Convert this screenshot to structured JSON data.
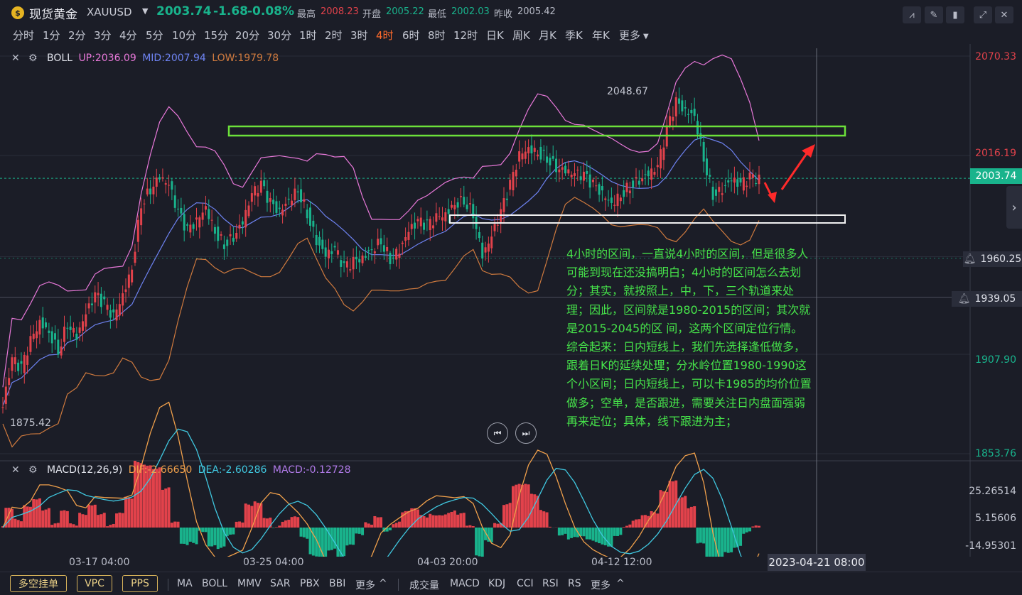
{
  "header": {
    "logo_glyph": "$",
    "symbol_name": "现货黄金",
    "symbol_code": "XAUUSD",
    "last_price": "2003.74",
    "change": "-1.68",
    "change_pct": "-0.08%",
    "high_label": "最高",
    "high_value": "2008.23",
    "open_label": "开盘",
    "open_value": "2005.22",
    "low_label": "最低",
    "low_value": "2002.03",
    "prev_label": "昨收",
    "prev_value": "2005.42",
    "colors": {
      "up": "#e2424b",
      "down": "#19b38c",
      "accent": "#ff6a2b"
    }
  },
  "periods": [
    "分时",
    "1分",
    "2分",
    "3分",
    "4分",
    "5分",
    "10分",
    "15分",
    "20分",
    "30分",
    "1时",
    "2时",
    "3时",
    "4时",
    "6时",
    "8时",
    "12时",
    "日K",
    "周K",
    "月K",
    "季K",
    "年K",
    "更多"
  ],
  "active_period": "4时",
  "boll": {
    "name": "BOLL",
    "up": "UP:2036.09",
    "mid": "MID:2007.94",
    "low": "LOW:1979.78",
    "colors": {
      "up": "#e878d9",
      "mid": "#6d82f0",
      "low": "#cf7a3e"
    }
  },
  "price_axis": {
    "labels": [
      "2070.33",
      "2016.19",
      "1907.90",
      "1853.76"
    ],
    "current_tag": "2003.74",
    "alert_1": "1960.25",
    "alert_2": "1939.05"
  },
  "chart_labels": {
    "high_mark": "2048.67",
    "low_mark": "1875.42"
  },
  "annotation": [
    "4小时的区间，一直说4小时的区间，但是很多人",
    "可能到现在还没搞明白；4小时的区间怎么去划",
    "分；其实，就按照上，中，下，三个轨道来处",
    "理；因此，区间就是1980-2015的区间；其次就",
    "是2015-2045的区 间，这两个区间定位行情。",
    "综合起来：日内短线上，我们先选择逢低做多，",
    "跟着日K的延续处理；分水岭位置1980-1990这",
    "个小区间；日内短线上，可以卡1985的均价位置",
    "做多；空单，是否跟进，需要关注日内盘面强弱",
    "再来定位；具体，线下跟进为主；"
  ],
  "macd": {
    "name": "MACD(12,26,9)",
    "dif": "DIF:-2.66650",
    "dea": "DEA:-2.60286",
    "macd": "MACD:-0.12728",
    "colors": {
      "dif": "#f0a04b",
      "dea": "#40c8e0",
      "macd": "#b07ae8"
    },
    "axis": [
      "25.26514",
      "5.15606",
      "-14.95301"
    ]
  },
  "time_axis": {
    "labels": [
      "03-17 04:00",
      "03-25 04:00",
      "04-03 20:00",
      "04-12 12:00"
    ],
    "cursor": "2023-04-21 08:00"
  },
  "bottom": {
    "chips": [
      "多空挂单",
      "VPC",
      "PPS"
    ],
    "main_indicators": [
      "MA",
      "BOLL",
      "MMV",
      "SAR",
      "PBX",
      "BBI",
      "更多"
    ],
    "sub_indicators": [
      "成交量",
      "MACD",
      "KDJ",
      "CCI",
      "RSI",
      "RS",
      "更多"
    ]
  },
  "chart_data": {
    "type": "candlestick",
    "note_units": "price in USD",
    "ylim": [
      1853.76,
      2070.33
    ],
    "ohlc_close_series": [
      1880,
      1905,
      1900,
      1915,
      1925,
      1920,
      1910,
      1925,
      1918,
      1930,
      1940,
      1935,
      1928,
      1940,
      1955,
      1990,
      1998,
      2005,
      2000,
      1985,
      1975,
      1980,
      1988,
      1975,
      1968,
      1972,
      1980,
      1995,
      2000,
      1990,
      1985,
      1992,
      1998,
      1985,
      1970,
      1962,
      1965,
      1955,
      1958,
      1960,
      1965,
      1970,
      1960,
      1965,
      1975,
      1980,
      1978,
      1982,
      1984,
      1990,
      1992,
      1985,
      1962,
      1972,
      1985,
      2000,
      2016,
      2020,
      2018,
      2015,
      2010,
      2008,
      2006,
      2005,
      2000,
      1995,
      1990,
      1995,
      2000,
      2003,
      2006,
      2010,
      2030,
      2045,
      2040,
      2038,
      2015,
      1995,
      1998,
      2003,
      2000,
      2004,
      2003
    ]
  }
}
